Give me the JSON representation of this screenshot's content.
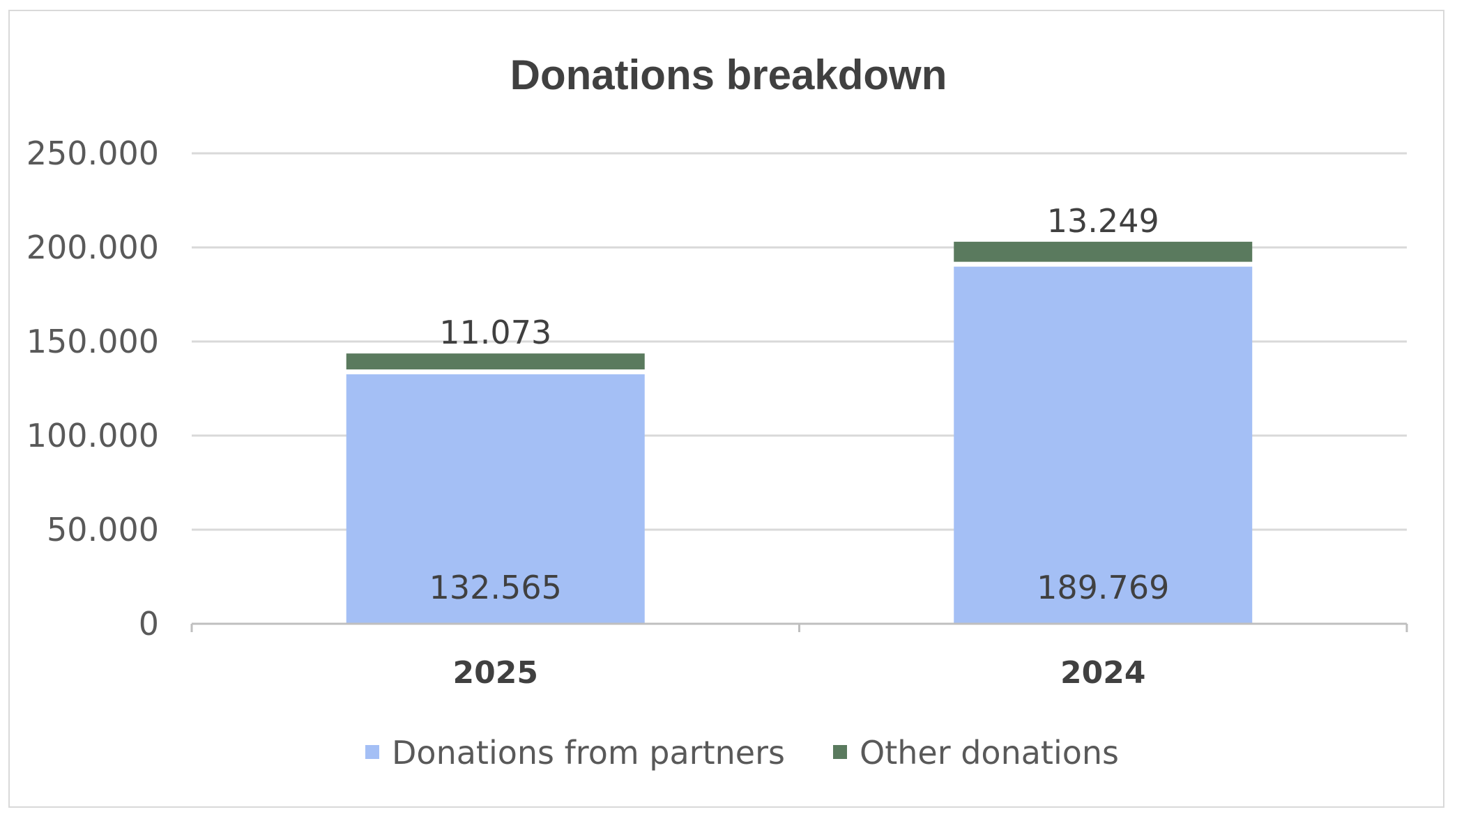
{
  "chart_data": {
    "type": "stacked-bar",
    "title": "Donations breakdown",
    "xlabel": "",
    "ylabel": "",
    "categories": [
      "2025",
      "2024"
    ],
    "series": [
      {
        "name": "Donations from partners",
        "values": [
          132565,
          189769
        ],
        "labels": [
          "132.565",
          "189.769"
        ],
        "color": "#a4bff5"
      },
      {
        "name": "Other donations",
        "values": [
          11073,
          13249
        ],
        "labels": [
          "11.073",
          "13.249"
        ],
        "color": "#5a7a5e"
      }
    ],
    "ylim": [
      0,
      250000
    ],
    "yticks": [
      {
        "value": 0,
        "label": "0"
      },
      {
        "value": 50000,
        "label": "50.000"
      },
      {
        "value": 100000,
        "label": "100.000"
      },
      {
        "value": 150000,
        "label": "150.000"
      },
      {
        "value": 200000,
        "label": "200.000"
      },
      {
        "value": 250000,
        "label": "250.000"
      }
    ],
    "grid": true,
    "legend_position": "bottom"
  }
}
